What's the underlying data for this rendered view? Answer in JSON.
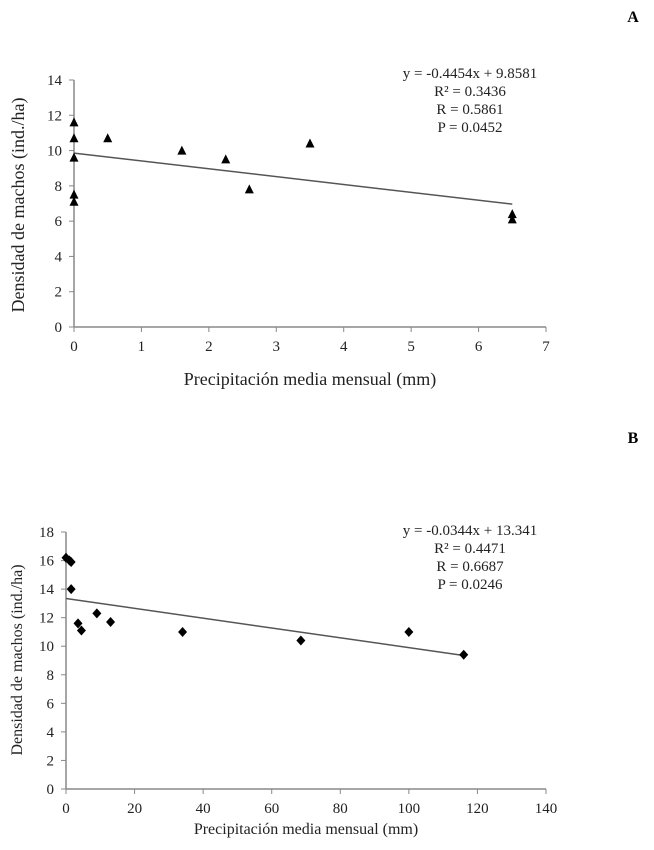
{
  "chart_data": [
    {
      "panel": "A",
      "type": "scatter",
      "marker": "triangle",
      "xlabel": "Precipitación media mensual (mm)",
      "ylabel": "Densidad de machos (ind./ha)",
      "xlim": [
        0,
        7
      ],
      "ylim": [
        0,
        14
      ],
      "xticks": [
        0,
        1,
        2,
        3,
        4,
        5,
        6,
        7
      ],
      "yticks": [
        0,
        2,
        4,
        6,
        8,
        10,
        12,
        14
      ],
      "points": [
        [
          0,
          11.6
        ],
        [
          0,
          10.7
        ],
        [
          0,
          9.6
        ],
        [
          0,
          7.5
        ],
        [
          0,
          7.1
        ],
        [
          0.5,
          10.7
        ],
        [
          1.6,
          10.0
        ],
        [
          2.25,
          9.5
        ],
        [
          2.6,
          7.8
        ],
        [
          3.5,
          10.4
        ],
        [
          6.5,
          6.4
        ],
        [
          6.5,
          6.1
        ]
      ],
      "trend": {
        "slope": -0.4454,
        "intercept": 9.8581,
        "x_range": [
          0,
          6.5
        ]
      },
      "annotations": [
        "y = -0.4454x + 9.8581",
        "R² = 0.3436",
        "R = 0.5861",
        "P = 0.0452"
      ]
    },
    {
      "panel": "B",
      "type": "scatter",
      "marker": "diamond",
      "xlabel": "Precipitación media mensual (mm)",
      "ylabel": "Densidad de machos (ind./ha)",
      "xlim": [
        0,
        140
      ],
      "ylim": [
        0,
        18
      ],
      "xticks": [
        0,
        20,
        40,
        60,
        80,
        100,
        120,
        140
      ],
      "yticks": [
        0,
        2,
        4,
        6,
        8,
        10,
        12,
        14,
        16,
        18
      ],
      "points": [
        [
          0,
          16.2
        ],
        [
          1,
          16.0
        ],
        [
          1.5,
          15.9
        ],
        [
          1.5,
          14.0
        ],
        [
          3.5,
          11.6
        ],
        [
          4.5,
          11.1
        ],
        [
          9,
          12.3
        ],
        [
          13,
          11.7
        ],
        [
          34,
          11.0
        ],
        [
          68.5,
          10.4
        ],
        [
          100,
          11.0
        ],
        [
          116,
          9.4
        ]
      ],
      "trend": {
        "slope": -0.0344,
        "intercept": 13.341,
        "x_range": [
          0,
          116
        ]
      },
      "annotations": [
        "y = -0.0344x + 13.341",
        "R² = 0.4471",
        "R = 0.6687",
        "P = 0.0246"
      ]
    }
  ]
}
